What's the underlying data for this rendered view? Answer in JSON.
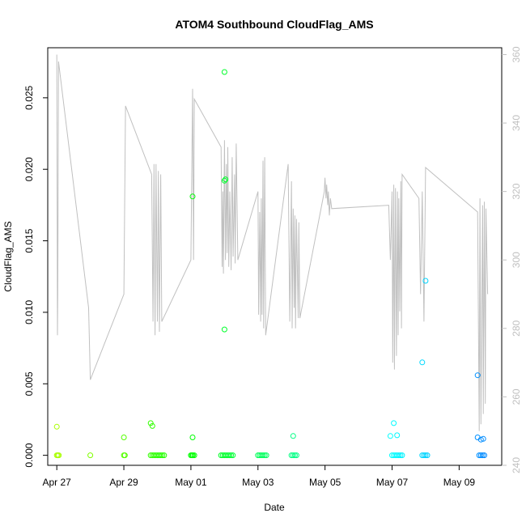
{
  "chart_data": {
    "type": "scatter",
    "title": "ATOM4 Southbound CloudFlag_AMS",
    "xlabel": "Date",
    "ylabel": "CloudFlag_AMS",
    "x_ticks": [
      "Apr 27",
      "Apr 29",
      "May 01",
      "May 03",
      "May 05",
      "May 07",
      "May 09"
    ],
    "y_ticks": [
      "0.000",
      "0.005",
      "0.010",
      "0.015",
      "0.020",
      "0.025"
    ],
    "y_tick_values": [
      0,
      0.005,
      0.01,
      0.015,
      0.02,
      0.025
    ],
    "xlim_days": [
      -0.27,
      13.27
    ],
    "ylim": [
      -0.0007,
      0.0285
    ],
    "right_axis": {
      "ticks": [
        "240",
        "260",
        "280",
        "300",
        "320",
        "340",
        "360"
      ],
      "tick_values": [
        240,
        260,
        280,
        300,
        320,
        340,
        360
      ],
      "ylim": [
        240,
        362
      ],
      "color": "#c0c0c0",
      "line_points": [
        [
          0.0,
          360
        ],
        [
          0.02,
          278
        ],
        [
          0.03,
          290
        ],
        [
          0.05,
          358
        ],
        [
          0.95,
          286
        ],
        [
          1.0,
          265
        ],
        [
          2.0,
          290
        ],
        [
          2.05,
          345
        ],
        [
          2.83,
          325
        ],
        [
          2.87,
          282
        ],
        [
          2.9,
          328
        ],
        [
          2.93,
          278
        ],
        [
          2.96,
          328
        ],
        [
          3.0,
          282
        ],
        [
          3.03,
          326
        ],
        [
          3.06,
          279
        ],
        [
          3.1,
          325
        ],
        [
          3.13,
          282
        ],
        [
          4.0,
          300
        ],
        [
          4.05,
          350
        ],
        [
          4.08,
          300
        ],
        [
          4.1,
          347
        ],
        [
          4.9,
          333
        ],
        [
          4.93,
          298
        ],
        [
          4.95,
          320
        ],
        [
          4.97,
          296
        ],
        [
          5.0,
          335
        ],
        [
          5.03,
          300
        ],
        [
          5.06,
          328
        ],
        [
          5.08,
          302
        ],
        [
          5.1,
          333
        ],
        [
          5.13,
          298
        ],
        [
          5.16,
          320
        ],
        [
          5.2,
          297
        ],
        [
          5.23,
          330
        ],
        [
          5.26,
          301
        ],
        [
          5.3,
          325
        ],
        [
          5.32,
          299
        ],
        [
          5.35,
          334
        ],
        [
          5.4,
          300
        ],
        [
          6.0,
          320
        ],
        [
          6.02,
          284
        ],
        [
          6.05,
          314
        ],
        [
          6.08,
          282
        ],
        [
          6.1,
          318
        ],
        [
          6.12,
          284
        ],
        [
          6.15,
          329
        ],
        [
          6.17,
          280
        ],
        [
          6.2,
          330
        ],
        [
          6.23,
          278
        ],
        [
          6.9,
          328
        ],
        [
          6.95,
          282
        ],
        [
          7.0,
          323
        ],
        [
          7.02,
          280
        ],
        [
          7.05,
          315
        ],
        [
          7.08,
          286
        ],
        [
          7.1,
          313
        ],
        [
          7.12,
          280
        ],
        [
          7.15,
          312
        ],
        [
          7.2,
          283
        ],
        [
          7.22,
          311
        ],
        [
          7.25,
          283
        ],
        [
          7.98,
          320
        ],
        [
          8.0,
          324
        ],
        [
          8.03,
          318
        ],
        [
          8.05,
          322
        ],
        [
          8.08,
          316
        ],
        [
          8.1,
          320
        ],
        [
          8.13,
          313
        ],
        [
          8.16,
          318
        ],
        [
          8.2,
          315
        ],
        [
          9.9,
          316
        ],
        [
          9.95,
          300
        ],
        [
          10.0,
          320
        ],
        [
          10.02,
          270
        ],
        [
          10.05,
          322
        ],
        [
          10.07,
          268
        ],
        [
          10.1,
          321
        ],
        [
          10.13,
          272
        ],
        [
          10.16,
          320
        ],
        [
          10.18,
          278
        ],
        [
          10.2,
          318
        ],
        [
          10.23,
          285
        ],
        [
          10.26,
          323
        ],
        [
          10.28,
          280
        ],
        [
          10.3,
          325
        ],
        [
          10.8,
          318
        ],
        [
          10.85,
          290
        ],
        [
          10.9,
          320
        ],
        [
          10.95,
          282
        ],
        [
          11.0,
          327
        ],
        [
          12.55,
          314
        ],
        [
          12.6,
          250
        ],
        [
          12.62,
          318
        ],
        [
          12.65,
          252
        ],
        [
          12.7,
          316
        ],
        [
          12.72,
          255
        ],
        [
          12.75,
          317
        ],
        [
          12.78,
          258
        ],
        [
          12.8,
          315
        ],
        [
          12.85,
          290
        ]
      ]
    },
    "series": [
      {
        "points": [
          [
            0.0,
            0
          ],
          [
            0.03,
            0
          ],
          [
            0.06,
            0
          ],
          [
            0.0,
            0.002
          ],
          [
            1.0,
            0
          ],
          [
            2.0,
            0
          ],
          [
            2.03,
            0
          ],
          [
            2.0,
            0.00125
          ],
          [
            2.8,
            0
          ],
          [
            2.85,
            0
          ],
          [
            2.9,
            0
          ],
          [
            2.95,
            0
          ],
          [
            3.0,
            0
          ],
          [
            3.05,
            0
          ],
          [
            3.1,
            0
          ],
          [
            3.15,
            0
          ],
          [
            3.2,
            0
          ],
          [
            2.8,
            0.00225
          ],
          [
            2.85,
            0.00205
          ],
          [
            4.0,
            0
          ],
          [
            4.03,
            0
          ],
          [
            4.06,
            0
          ],
          [
            4.1,
            0
          ],
          [
            4.05,
            0.00125
          ],
          [
            4.05,
            0.0181
          ],
          [
            4.9,
            0
          ],
          [
            4.95,
            0
          ],
          [
            5.0,
            0
          ],
          [
            5.05,
            0
          ],
          [
            5.1,
            0
          ],
          [
            5.15,
            0
          ],
          [
            5.2,
            0
          ],
          [
            5.25,
            0
          ],
          [
            5.0,
            0.0268
          ],
          [
            5.0,
            0.0192
          ],
          [
            5.03,
            0.0193
          ],
          [
            5.0,
            0.0088
          ],
          [
            6.0,
            0
          ],
          [
            6.05,
            0
          ],
          [
            6.1,
            0
          ],
          [
            6.15,
            0
          ],
          [
            6.2,
            0
          ],
          [
            6.25,
            0
          ],
          [
            7.0,
            0
          ],
          [
            7.05,
            0
          ],
          [
            7.1,
            0
          ],
          [
            7.15,
            0
          ],
          [
            7.05,
            0.00135
          ],
          [
            10.0,
            0
          ],
          [
            10.05,
            0
          ],
          [
            10.1,
            0
          ],
          [
            10.15,
            0
          ],
          [
            10.2,
            0
          ],
          [
            10.25,
            0
          ],
          [
            10.3,
            0
          ],
          [
            9.95,
            0.00135
          ],
          [
            10.05,
            0.00225
          ],
          [
            10.15,
            0.0014
          ],
          [
            10.9,
            0
          ],
          [
            10.95,
            0
          ],
          [
            11.0,
            0
          ],
          [
            11.05,
            0
          ],
          [
            10.9,
            0.0065
          ],
          [
            11.0,
            0.0122
          ],
          [
            12.6,
            0
          ],
          [
            12.65,
            0
          ],
          [
            12.7,
            0
          ],
          [
            12.75,
            0
          ],
          [
            12.55,
            0.0056
          ],
          [
            12.55,
            0.00125
          ],
          [
            12.65,
            0.0011
          ],
          [
            12.72,
            0.00115
          ]
        ]
      }
    ]
  }
}
